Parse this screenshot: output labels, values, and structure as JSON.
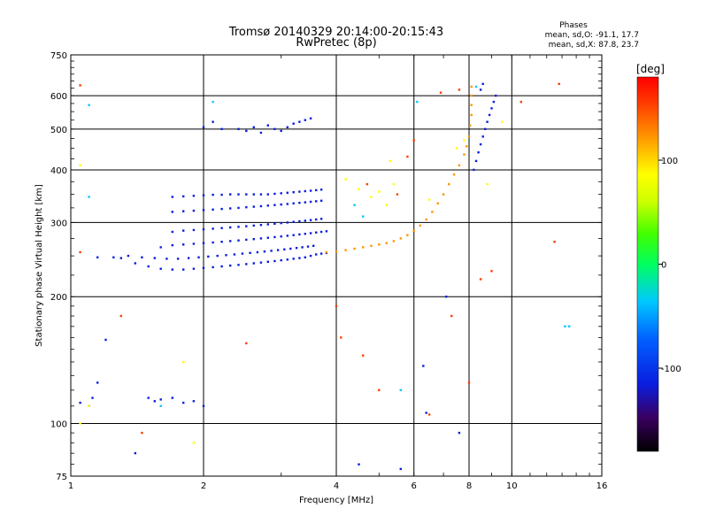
{
  "chart_data": {
    "type": "scatter",
    "title": "Tromsø 20140329 20:14:00-20:15:43",
    "subtitle": "RwPretec (8p)",
    "xlabel": "Frequency [MHz]",
    "ylabel": "Stationary phase Virtual Height [km]",
    "x_scale": "log",
    "y_scale": "log",
    "xlim": [
      1,
      16
    ],
    "ylim": [
      75,
      750
    ],
    "x_ticks": [
      1,
      2,
      4,
      6,
      8,
      10,
      16
    ],
    "x_tick_labels": [
      "1",
      "2",
      "4",
      "6",
      "8",
      "10",
      "16"
    ],
    "y_ticks": [
      75,
      100,
      200,
      300,
      400,
      500,
      600,
      750
    ],
    "y_tick_labels": [
      "75",
      "100",
      "200",
      "300",
      "400",
      "500",
      "600",
      "750"
    ],
    "grid": true,
    "stats": {
      "heading": "Phases",
      "line_o": "mean, sd,O: -91.1, 17.7",
      "line_x": "mean, sd,X:  87.8, 23.7"
    },
    "colorbar": {
      "label": "[deg]",
      "min": -180,
      "max": 180,
      "ticks": [
        100,
        0,
        -100
      ],
      "tick_labels": [
        "100",
        "0",
        "-100"
      ],
      "colors": [
        "#000000",
        "#3a0060",
        "#0a1ee0",
        "#0060ff",
        "#00c8ff",
        "#00ff60",
        "#40ff00",
        "#d0ff00",
        "#ffff00",
        "#ff9600",
        "#ff3c00",
        "#ff0000"
      ]
    },
    "series": [
      {
        "trace": "o-mode-low",
        "phase_deg": -100,
        "points": [
          [
            1.4,
            240
          ],
          [
            1.5,
            236
          ],
          [
            1.6,
            233
          ],
          [
            1.7,
            232
          ],
          [
            1.8,
            232
          ],
          [
            1.9,
            233
          ],
          [
            2.0,
            234
          ],
          [
            2.1,
            235
          ],
          [
            2.2,
            236
          ],
          [
            2.3,
            237
          ],
          [
            2.4,
            238
          ],
          [
            2.5,
            239
          ],
          [
            2.6,
            240
          ],
          [
            2.7,
            241
          ],
          [
            2.8,
            242
          ],
          [
            2.9,
            243
          ],
          [
            3.0,
            244
          ],
          [
            3.1,
            245
          ],
          [
            3.2,
            246
          ],
          [
            3.3,
            247
          ],
          [
            3.4,
            248
          ],
          [
            3.5,
            250
          ],
          [
            3.6,
            252
          ],
          [
            3.7,
            253
          ],
          [
            3.8,
            254
          ],
          [
            1.35,
            250
          ],
          [
            1.45,
            248
          ],
          [
            1.55,
            247
          ],
          [
            1.65,
            246
          ],
          [
            1.75,
            246
          ],
          [
            1.85,
            247
          ],
          [
            1.95,
            248
          ],
          [
            2.05,
            249
          ],
          [
            2.15,
            250
          ],
          [
            2.25,
            251
          ],
          [
            2.35,
            252
          ],
          [
            2.45,
            253
          ],
          [
            2.55,
            254
          ],
          [
            2.65,
            255
          ],
          [
            2.75,
            256
          ],
          [
            2.85,
            257
          ],
          [
            2.95,
            258
          ],
          [
            3.05,
            259
          ],
          [
            3.15,
            260
          ],
          [
            3.25,
            261
          ],
          [
            3.35,
            262
          ],
          [
            3.45,
            263
          ],
          [
            3.55,
            264
          ],
          [
            1.25,
            248
          ],
          [
            1.3,
            247
          ],
          [
            1.15,
            248
          ]
        ]
      },
      {
        "trace": "o-mode-mid",
        "phase_deg": -100,
        "points": [
          [
            1.6,
            262
          ],
          [
            1.7,
            265
          ],
          [
            1.8,
            266
          ],
          [
            1.9,
            267
          ],
          [
            2.0,
            268
          ],
          [
            2.1,
            269
          ],
          [
            2.2,
            270
          ],
          [
            2.3,
            271
          ],
          [
            2.4,
            272
          ],
          [
            2.5,
            273
          ],
          [
            2.6,
            274
          ],
          [
            2.7,
            275
          ],
          [
            2.8,
            276
          ],
          [
            2.9,
            277
          ],
          [
            3.0,
            278
          ],
          [
            3.1,
            279
          ],
          [
            3.2,
            280
          ],
          [
            3.3,
            281
          ],
          [
            3.4,
            282
          ],
          [
            3.5,
            283
          ],
          [
            3.6,
            284
          ],
          [
            3.7,
            285
          ],
          [
            3.8,
            286
          ],
          [
            1.7,
            285
          ],
          [
            1.8,
            287
          ],
          [
            1.9,
            288
          ],
          [
            2.0,
            289
          ],
          [
            2.1,
            290
          ],
          [
            2.2,
            291
          ],
          [
            2.3,
            292
          ],
          [
            2.4,
            293
          ],
          [
            2.5,
            294
          ],
          [
            2.6,
            295
          ],
          [
            2.7,
            296
          ],
          [
            2.8,
            297
          ],
          [
            2.9,
            298
          ],
          [
            3.0,
            299
          ],
          [
            3.1,
            300
          ],
          [
            3.2,
            301
          ],
          [
            3.3,
            302
          ],
          [
            3.4,
            303
          ],
          [
            3.5,
            304
          ],
          [
            3.6,
            305
          ],
          [
            3.7,
            306
          ]
        ]
      },
      {
        "trace": "o-mode-high",
        "phase_deg": -100,
        "points": [
          [
            1.7,
            318
          ],
          [
            1.8,
            319
          ],
          [
            1.9,
            320
          ],
          [
            2.0,
            321
          ],
          [
            2.1,
            322
          ],
          [
            2.2,
            323
          ],
          [
            2.3,
            324
          ],
          [
            2.4,
            325
          ],
          [
            2.5,
            326
          ],
          [
            2.6,
            327
          ],
          [
            2.7,
            328
          ],
          [
            2.8,
            329
          ],
          [
            2.9,
            330
          ],
          [
            3.0,
            331
          ],
          [
            3.1,
            332
          ],
          [
            3.2,
            333
          ],
          [
            3.3,
            334
          ],
          [
            3.4,
            335
          ],
          [
            3.5,
            336
          ],
          [
            3.6,
            337
          ],
          [
            3.7,
            338
          ],
          [
            1.7,
            345
          ],
          [
            1.8,
            346
          ],
          [
            1.9,
            347
          ],
          [
            2.0,
            348
          ],
          [
            2.1,
            349
          ],
          [
            2.2,
            349
          ],
          [
            2.3,
            350
          ],
          [
            2.4,
            350
          ],
          [
            2.5,
            350
          ],
          [
            2.6,
            350
          ],
          [
            2.7,
            350
          ],
          [
            2.8,
            350
          ],
          [
            2.9,
            351
          ],
          [
            3.0,
            352
          ],
          [
            3.1,
            353
          ],
          [
            3.2,
            354
          ],
          [
            3.3,
            355
          ],
          [
            3.4,
            356
          ],
          [
            3.5,
            357
          ],
          [
            3.6,
            358
          ],
          [
            3.7,
            359
          ]
        ]
      },
      {
        "trace": "x-mode",
        "phase_deg": 100,
        "points": [
          [
            3.8,
            255
          ],
          [
            4.0,
            256
          ],
          [
            4.2,
            258
          ],
          [
            4.4,
            260
          ],
          [
            4.6,
            262
          ],
          [
            4.8,
            264
          ],
          [
            5.0,
            266
          ],
          [
            5.2,
            268
          ],
          [
            5.4,
            271
          ],
          [
            5.6,
            275
          ],
          [
            5.8,
            280
          ],
          [
            6.0,
            287
          ],
          [
            6.2,
            295
          ],
          [
            6.4,
            305
          ],
          [
            6.6,
            318
          ],
          [
            6.8,
            333
          ],
          [
            7.0,
            350
          ],
          [
            7.2,
            370
          ],
          [
            7.4,
            390
          ],
          [
            7.6,
            410
          ],
          [
            7.8,
            435
          ],
          [
            7.9,
            455
          ],
          [
            8.0,
            480
          ],
          [
            8.05,
            510
          ],
          [
            8.1,
            540
          ],
          [
            8.1,
            570
          ],
          [
            8.1,
            600
          ],
          [
            8.1,
            630
          ]
        ]
      },
      {
        "trace": "o-mode-cusp",
        "phase_deg": -100,
        "points": [
          [
            8.2,
            400
          ],
          [
            8.3,
            420
          ],
          [
            8.4,
            440
          ],
          [
            8.5,
            460
          ],
          [
            8.6,
            480
          ],
          [
            8.7,
            500
          ],
          [
            8.8,
            520
          ],
          [
            8.9,
            540
          ],
          [
            9.0,
            560
          ],
          [
            9.1,
            580
          ],
          [
            9.2,
            600
          ],
          [
            8.5,
            620
          ],
          [
            8.6,
            640
          ]
        ]
      },
      {
        "trace": "f2-top",
        "phase_deg": -100,
        "points": [
          [
            2.4,
            500
          ],
          [
            2.5,
            495
          ],
          [
            2.6,
            505
          ],
          [
            2.7,
            490
          ],
          [
            2.8,
            510
          ],
          [
            2.9,
            500
          ],
          [
            3.0,
            495
          ],
          [
            3.1,
            505
          ],
          [
            3.2,
            515
          ],
          [
            3.3,
            520
          ],
          [
            3.4,
            525
          ],
          [
            3.5,
            530
          ],
          [
            2.0,
            505
          ],
          [
            2.1,
            520
          ],
          [
            2.2,
            500
          ]
        ]
      },
      {
        "trace": "scatter-low",
        "phase_deg": -100,
        "points": [
          [
            1.05,
            112
          ],
          [
            1.1,
            110
          ],
          [
            1.12,
            115
          ],
          [
            1.15,
            125
          ],
          [
            1.2,
            158
          ],
          [
            1.5,
            115
          ],
          [
            1.55,
            113
          ],
          [
            1.6,
            114
          ],
          [
            1.7,
            115
          ],
          [
            1.8,
            112
          ],
          [
            1.9,
            113
          ],
          [
            2.0,
            110
          ],
          [
            6.3,
            137
          ],
          [
            6.4,
            106
          ],
          [
            7.1,
            200
          ],
          [
            7.6,
            95
          ],
          [
            1.4,
            85
          ],
          [
            5.6,
            78
          ],
          [
            4.5,
            80
          ]
        ]
      },
      {
        "trace": "noise-warm",
        "phase_deg": 160,
        "points": [
          [
            1.05,
            635
          ],
          [
            1.05,
            255
          ],
          [
            1.3,
            180
          ],
          [
            1.45,
            95
          ],
          [
            2.5,
            155
          ],
          [
            4.0,
            190
          ],
          [
            4.1,
            160
          ],
          [
            4.6,
            145
          ],
          [
            5.0,
            120
          ],
          [
            6.5,
            105
          ],
          [
            7.3,
            180
          ],
          [
            8.0,
            125
          ],
          [
            8.5,
            220
          ],
          [
            9.0,
            230
          ],
          [
            10.5,
            580
          ],
          [
            12.5,
            270
          ],
          [
            12.8,
            640
          ],
          [
            6.0,
            470
          ],
          [
            5.8,
            430
          ],
          [
            4.7,
            370
          ],
          [
            5.5,
            350
          ],
          [
            6.9,
            610
          ],
          [
            7.6,
            620
          ]
        ]
      },
      {
        "trace": "noise-cool",
        "phase_deg": -40,
        "points": [
          [
            1.1,
            570
          ],
          [
            1.1,
            345
          ],
          [
            1.6,
            110
          ],
          [
            2.1,
            580
          ],
          [
            4.6,
            310
          ],
          [
            4.4,
            330
          ],
          [
            5.6,
            120
          ],
          [
            6.1,
            580
          ],
          [
            8.3,
            630
          ],
          [
            13.5,
            170
          ],
          [
            13.2,
            170
          ]
        ]
      },
      {
        "trace": "noise-yellow",
        "phase_deg": 90,
        "points": [
          [
            1.1,
            110
          ],
          [
            1.05,
            100
          ],
          [
            1.05,
            410
          ],
          [
            1.9,
            90
          ],
          [
            1.8,
            140
          ],
          [
            4.5,
            360
          ],
          [
            4.2,
            380
          ],
          [
            4.8,
            345
          ],
          [
            5.0,
            355
          ],
          [
            5.2,
            330
          ],
          [
            5.4,
            370
          ],
          [
            5.3,
            420
          ],
          [
            7.5,
            450
          ],
          [
            7.8,
            470
          ],
          [
            8.8,
            370
          ],
          [
            9.5,
            520
          ],
          [
            6.5,
            340
          ]
        ]
      }
    ]
  }
}
